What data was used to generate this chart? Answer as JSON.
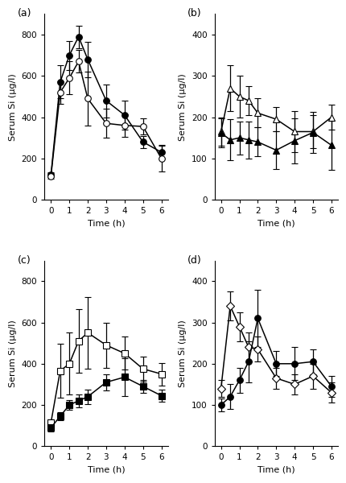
{
  "subplots": [
    {
      "label": "(a)",
      "ylim": [
        0,
        900
      ],
      "yticks": [
        0,
        200,
        400,
        600,
        800
      ],
      "ylabel": "Serum Si (µg/l)",
      "xlabel": "Time (h)",
      "series": [
        {
          "x": [
            0,
            0.5,
            1,
            1.5,
            2,
            3,
            4,
            5,
            6
          ],
          "y": [
            120,
            570,
            700,
            790,
            680,
            480,
            410,
            280,
            230
          ],
          "yerr": [
            12,
            80,
            70,
            55,
            85,
            80,
            70,
            30,
            30
          ],
          "marker": "filled_circle",
          "linestyle": "-"
        },
        {
          "x": [
            0,
            0.5,
            1,
            1.5,
            2,
            3,
            4,
            5,
            6
          ],
          "y": [
            115,
            520,
            590,
            670,
            490,
            370,
            360,
            355,
            200
          ],
          "yerr": [
            15,
            55,
            80,
            55,
            130,
            70,
            55,
            40,
            65
          ],
          "marker": "open_circle",
          "linestyle": "-"
        }
      ]
    },
    {
      "label": "(b)",
      "ylim": [
        0,
        450
      ],
      "yticks": [
        0,
        100,
        200,
        300,
        400
      ],
      "ylabel": "Serum Si (µg/l)",
      "xlabel": "Time (h)",
      "series": [
        {
          "x": [
            0,
            0.5,
            1,
            1.5,
            2,
            3,
            4,
            5,
            6
          ],
          "y": [
            165,
            270,
            250,
            240,
            210,
            195,
            165,
            165,
            200
          ],
          "yerr": [
            35,
            55,
            50,
            35,
            35,
            30,
            50,
            40,
            30
          ],
          "marker": "open_triangle",
          "linestyle": "-"
        },
        {
          "x": [
            0,
            0.5,
            1,
            1.5,
            2,
            3,
            4,
            5,
            6
          ],
          "y": [
            162,
            145,
            150,
            145,
            140,
            120,
            143,
            163,
            132
          ],
          "yerr": [
            35,
            50,
            40,
            45,
            35,
            45,
            55,
            50,
            60
          ],
          "marker": "filled_triangle",
          "linestyle": "-"
        }
      ]
    },
    {
      "label": "(c)",
      "ylim": [
        0,
        900
      ],
      "yticks": [
        0,
        200,
        400,
        600,
        800
      ],
      "ylabel": "Serum Si (µg/l)",
      "xlabel": "Time (h)",
      "series": [
        {
          "x": [
            0,
            0.5,
            1,
            1.5,
            2,
            3,
            4,
            5,
            6
          ],
          "y": [
            115,
            365,
            400,
            510,
            550,
            490,
            450,
            375,
            350
          ],
          "yerr": [
            15,
            130,
            150,
            155,
            175,
            110,
            80,
            60,
            55
          ],
          "marker": "open_square",
          "linestyle": "-"
        },
        {
          "x": [
            0,
            0.5,
            1,
            1.5,
            2,
            3,
            4,
            5,
            6
          ],
          "y": [
            90,
            145,
            200,
            220,
            240,
            310,
            335,
            290,
            245
          ],
          "yerr": [
            20,
            20,
            25,
            30,
            35,
            40,
            90,
            30,
            30
          ],
          "marker": "filled_square",
          "linestyle": "-"
        }
      ]
    },
    {
      "label": "(d)",
      "ylim": [
        0,
        450
      ],
      "yticks": [
        0,
        100,
        200,
        300,
        400
      ],
      "ylabel": "Serum Si (µg/l)",
      "xlabel": "Time (h)",
      "series": [
        {
          "x": [
            0,
            0.5,
            1,
            1.5,
            2,
            3,
            4,
            5,
            6
          ],
          "y": [
            140,
            340,
            290,
            240,
            235,
            165,
            150,
            170,
            130
          ],
          "yerr": [
            20,
            35,
            35,
            35,
            30,
            25,
            25,
            30,
            25
          ],
          "marker": "open_diamond",
          "linestyle": "-"
        },
        {
          "x": [
            0,
            0.5,
            1,
            1.5,
            2,
            3,
            4,
            5,
            6
          ],
          "y": [
            100,
            120,
            160,
            205,
            310,
            200,
            200,
            205,
            145
          ],
          "yerr": [
            15,
            30,
            30,
            50,
            70,
            30,
            40,
            30,
            25
          ],
          "marker": "filled_circle",
          "linestyle": "-"
        }
      ]
    }
  ],
  "xticks": [
    0,
    1,
    2,
    3,
    4,
    5,
    6
  ],
  "marker_size": 5.5,
  "capsize": 3,
  "linewidth": 1.1,
  "elinewidth": 0.9,
  "color": "black",
  "background": "#ffffff",
  "font_size_label": 8,
  "font_size_tick": 7.5,
  "font_size_panel": 9
}
